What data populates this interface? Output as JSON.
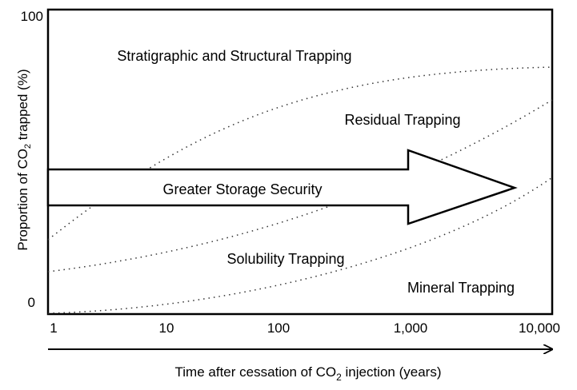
{
  "axes": {
    "y_title": {
      "before": "Proportion of CO",
      "sub": "2",
      "after": " trapped (%)"
    },
    "y_ticks": [
      "100",
      "0"
    ],
    "x_ticks": [
      "1",
      "10",
      "100",
      "1,000",
      "10,000"
    ],
    "x_title": {
      "before": "Time after cessation of CO",
      "sub": "2",
      "after": " injection (years)"
    }
  },
  "regions": [
    "Stratigraphic and Structural Trapping",
    "Residual Trapping",
    "Greater Storage Security",
    "Solubility Trapping",
    "Mineral Trapping"
  ]
}
